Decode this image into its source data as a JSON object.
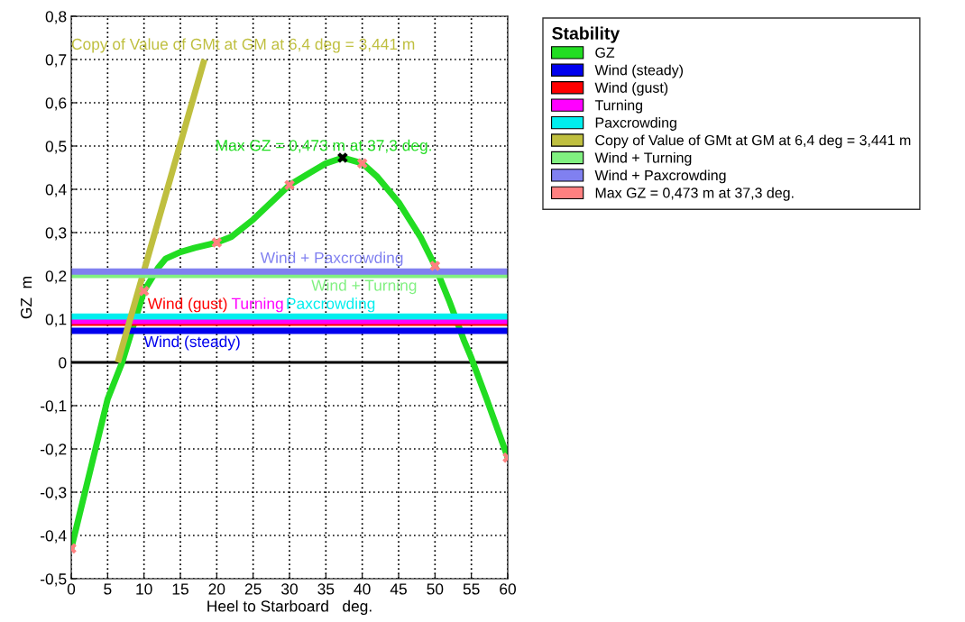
{
  "chart_data": {
    "type": "line",
    "xlabel": "Heel to Starboard   deg.",
    "ylabel": "GZ  m",
    "legend_title": "Stability",
    "legend": "top right",
    "grid": true,
    "line_style": "solid",
    "marker": "none",
    "xlim": [
      0,
      60
    ],
    "xticks": [
      0,
      5,
      10,
      15,
      20,
      25,
      30,
      35,
      40,
      45,
      50,
      55,
      60
    ],
    "ylim": [
      -0.5,
      0.8
    ],
    "yticks": [
      {
        "value": -0.5,
        "label": "-0,5"
      },
      {
        "value": -0.4,
        "label": "-0,4"
      },
      {
        "value": -0.3,
        "label": "-0,3"
      },
      {
        "value": -0.2,
        "label": "-0,2"
      },
      {
        "value": -0.1,
        "label": "-0,1"
      },
      {
        "value": 0,
        "label": "0"
      },
      {
        "value": 0.1,
        "label": "0,1"
      },
      {
        "value": 0.2,
        "label": "0,2"
      },
      {
        "value": 0.3,
        "label": "0,3"
      },
      {
        "value": 0.4,
        "label": "0,4"
      },
      {
        "value": 0.5,
        "label": "0,5"
      },
      {
        "value": 0.6,
        "label": "0,6"
      },
      {
        "value": 0.7,
        "label": "0,7"
      },
      {
        "value": 0.8,
        "label": "0,8"
      }
    ],
    "ref_lines": [
      {
        "axis": "y",
        "value": 0,
        "color": "#000000"
      }
    ],
    "series": [
      {
        "name": "GZ",
        "color": "#22dd22",
        "x": [
          0,
          5,
          7,
          10,
          12,
          13,
          15,
          17,
          20,
          22,
          25,
          30,
          33,
          35,
          37.3,
          40,
          42,
          45,
          48,
          50,
          52,
          54,
          55,
          57,
          60
        ],
        "values": [
          -0.43,
          -0.085,
          0,
          0.165,
          0.22,
          0.24,
          0.255,
          0.265,
          0.277,
          0.29,
          0.33,
          0.41,
          0.44,
          0.46,
          0.473,
          0.46,
          0.43,
          0.37,
          0.29,
          0.223,
          0.14,
          0.05,
          0.01,
          -0.08,
          -0.22
        ]
      },
      {
        "name": "Wind (steady)",
        "color": "#0000ee",
        "x": [
          0,
          60
        ],
        "values": [
          0.073,
          0.073
        ]
      },
      {
        "name": "Wind (gust)",
        "color": "#ff0000",
        "x": [
          0,
          60
        ],
        "values": [
          0.096,
          0.096
        ]
      },
      {
        "name": "Turning",
        "color": "#ff00ff",
        "x": [
          0,
          60
        ],
        "values": [
          0.096,
          0.096
        ]
      },
      {
        "name": "Paxcrowding",
        "color": "#00eeee",
        "x": [
          0,
          60
        ],
        "values": [
          0.106,
          0.106
        ]
      },
      {
        "name": "Copy of Value of GMt at GM at 6,4 deg = 3,441 m",
        "color": "#bfbf3f",
        "x": [
          6.4,
          18.3
        ],
        "values": [
          0,
          0.7
        ]
      },
      {
        "name": "Wind + Turning",
        "color": "#80f080",
        "x": [
          0,
          60
        ],
        "values": [
          0.202,
          0.202
        ]
      },
      {
        "name": "Wind + Paxcrowding",
        "color": "#8080f0",
        "x": [
          0,
          60
        ],
        "values": [
          0.21,
          0.21
        ]
      },
      {
        "name": "Max GZ = 0,473 m at 37,3 deg.",
        "type": "scatter",
        "marker": "cross",
        "color": "#ff8080",
        "x": [
          0,
          10,
          20,
          30,
          37.3,
          40,
          50,
          60
        ],
        "values": [
          -0.43,
          0.165,
          0.277,
          0.41,
          0.473,
          0.46,
          0.223,
          -0.22
        ],
        "colors": [
          "#ff8080",
          "#ff8080",
          "#ff8080",
          "#ff8080",
          "#000000",
          "#ff8080",
          "#ff8080",
          "#ff8080"
        ]
      }
    ],
    "annotations": [
      "Copy of Value of GMt at GM at 6,4 deg = 3,441 m",
      "Max GZ = 0,473 m at 37,3 deg.",
      {
        "text": "Wind (steady)",
        "x": 10,
        "y": 0.073
      },
      {
        "text": "Wind (gust)",
        "x": 10.5,
        "y": 0.096
      },
      {
        "text": "Turning",
        "x": 22,
        "y": 0.096
      },
      {
        "text": "Paxcrowding",
        "x": 29.5,
        "y": 0.106
      },
      {
        "text": "Wind + Turning",
        "x": 33,
        "y": 0.202
      },
      {
        "text": "Wind + Paxcrowding",
        "x": 26,
        "y": 0.21
      }
    ]
  }
}
